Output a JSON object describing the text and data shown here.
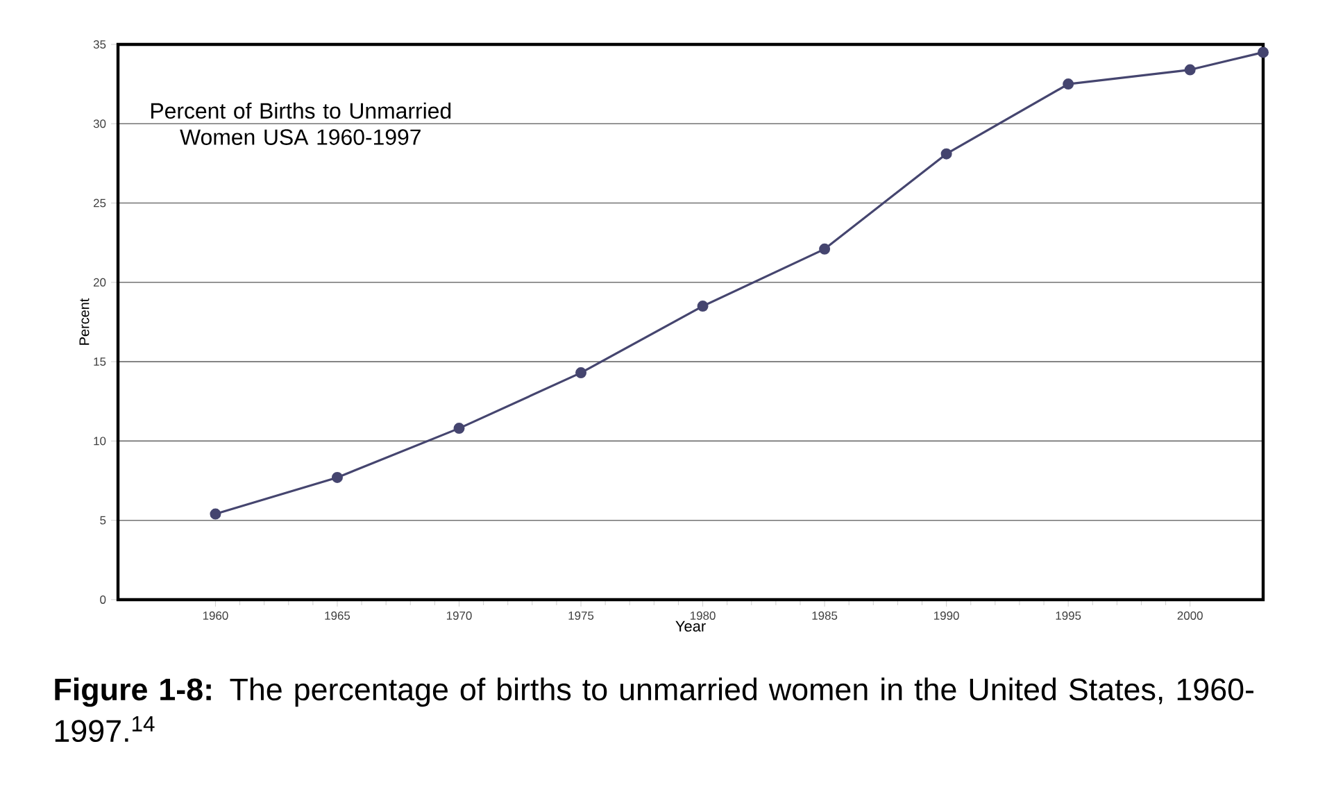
{
  "chart_data": {
    "type": "line",
    "title": "Percent of Births to Unmarried Women USA 1960-1997",
    "xlabel": "Year",
    "ylabel": "Percent",
    "x": [
      1960,
      1965,
      1970,
      1975,
      1980,
      1985,
      1990,
      1995,
      2000,
      2003
    ],
    "series": [
      {
        "color": "#45456f",
        "values": [
          5.4,
          7.7,
          10.8,
          14.3,
          18.5,
          22.1,
          28.1,
          32.5,
          33.4,
          34.5
        ]
      }
    ],
    "xlim": [
      1956,
      2003
    ],
    "ylim": [
      0,
      35
    ],
    "xticks": [
      1960,
      1965,
      1970,
      1975,
      1980,
      1985,
      1990,
      1995,
      2000
    ],
    "yticks": [
      0,
      5,
      10,
      15,
      20,
      25,
      30,
      35
    ],
    "grid": "y",
    "marker": "circle",
    "line_style": "solid",
    "annotations": [
      "**Figure 1-8:** The percentage of births to unmarried women in the United States, 1960-1997.$^{14}$"
    ]
  }
}
